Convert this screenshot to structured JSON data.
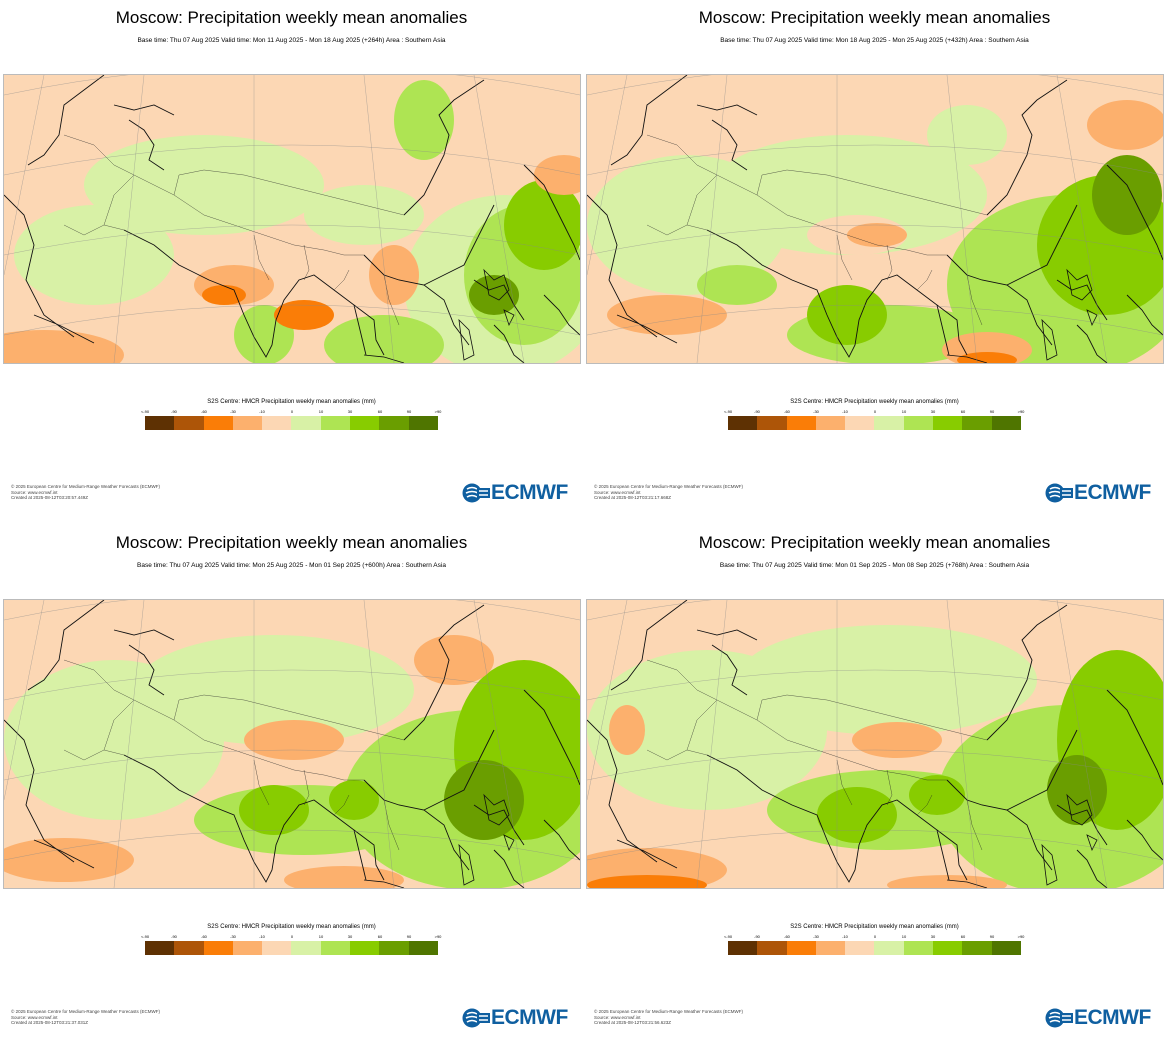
{
  "colors": {
    "background": "#ffffff",
    "logo_blue": "#0f5fa0",
    "legend": [
      "#5e3103",
      "#ad5508",
      "#fa7d07",
      "#fcb06d",
      "#fcd7b4",
      "#d8f1a6",
      "#aee453",
      "#88cc00",
      "#6a9e00",
      "#4f7500"
    ]
  },
  "panels": [
    {
      "title": "Moscow: Precipitation weekly mean anomalies",
      "subtitle": "Base time: Thu 07 Aug 2025 Valid time: Mon 11 Aug 2025 - Mon 18 Aug 2025 (+264h) Area : Southern Asia",
      "legend_title": "S2S Centre: HMCR Precipitation weekly mean anomalies (mm)",
      "legend_ticks": [
        "<-90",
        "-90",
        "-60",
        "-30",
        "-10",
        "0",
        "10",
        "30",
        "60",
        "90",
        ">90"
      ],
      "footer": [
        "© 2025 European Centre for Medium-Range Weather Forecasts (ECMWF)",
        "Source: www.ecmwf.int",
        "Created at 2025-08-12T03:20:57.449Z"
      ],
      "logo_text": "ECMWF"
    },
    {
      "title": "Moscow: Precipitation weekly mean anomalies",
      "subtitle": "Base time: Thu 07 Aug 2025 Valid time: Mon 18 Aug 2025 - Mon 25 Aug 2025 (+432h) Area : Southern Asia",
      "legend_title": "S2S Centre: HMCR Precipitation weekly mean anomalies (mm)",
      "legend_ticks": [
        "<-90",
        "-90",
        "-60",
        "-30",
        "-10",
        "0",
        "10",
        "30",
        "60",
        "90",
        ">90"
      ],
      "footer": [
        "© 2025 European Centre for Medium-Range Weather Forecasts (ECMWF)",
        "Source: www.ecmwf.int",
        "Created at 2025-08-12T03:21:17.668Z"
      ],
      "logo_text": "ECMWF"
    },
    {
      "title": "Moscow: Precipitation weekly mean anomalies",
      "subtitle": "Base time: Thu 07 Aug 2025 Valid time: Mon 25 Aug 2025 - Mon 01 Sep 2025 (+600h) Area : Southern Asia",
      "legend_title": "S2S Centre: HMCR Precipitation weekly mean anomalies (mm)",
      "legend_ticks": [
        "<-90",
        "-90",
        "-60",
        "-30",
        "-10",
        "0",
        "10",
        "30",
        "60",
        "90",
        ">90"
      ],
      "footer": [
        "© 2025 European Centre for Medium-Range Weather Forecasts (ECMWF)",
        "Source: www.ecmwf.int",
        "Created at 2025-08-12T03:21:37.031Z"
      ],
      "logo_text": "ECMWF"
    },
    {
      "title": "Moscow: Precipitation weekly mean anomalies",
      "subtitle": "Base time: Thu 07 Aug 2025 Valid time: Mon 01 Sep 2025 - Mon 08 Sep 2025 (+768h) Area : Southern Asia",
      "legend_title": "S2S Centre: HMCR Precipitation weekly mean anomalies (mm)",
      "legend_ticks": [
        "<-90",
        "-90",
        "-60",
        "-30",
        "-10",
        "0",
        "10",
        "30",
        "60",
        "90",
        ">90"
      ],
      "footer": [
        "© 2025 European Centre for Medium-Range Weather Forecasts (ECMWF)",
        "Source: www.ecmwf.int",
        "Created at 2025-08-12T03:21:56.623Z"
      ],
      "logo_text": "ECMWF"
    }
  ]
}
